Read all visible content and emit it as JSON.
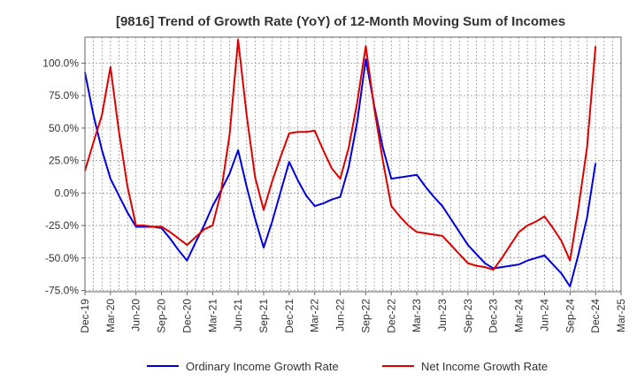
{
  "chart_data": {
    "type": "line",
    "title": "[9816]  Trend of Growth Rate (YoY) of 12-Month Moving Sum of Incomes",
    "xlabel": "",
    "ylabel": "",
    "x": [
      "Dec-19",
      "Jan-20",
      "Feb-20",
      "Mar-20",
      "Apr-20",
      "May-20",
      "Jun-20",
      "Jul-20",
      "Aug-20",
      "Sep-20",
      "Oct-20",
      "Nov-20",
      "Dec-20",
      "Jan-21",
      "Feb-21",
      "Mar-21",
      "Apr-21",
      "May-21",
      "Jun-21",
      "Jul-21",
      "Aug-21",
      "Sep-21",
      "Oct-21",
      "Nov-21",
      "Dec-21",
      "Jan-22",
      "Feb-22",
      "Mar-22",
      "Apr-22",
      "May-22",
      "Jun-22",
      "Jul-22",
      "Aug-22",
      "Sep-22",
      "Oct-22",
      "Nov-22",
      "Dec-22",
      "Jan-23",
      "Feb-23",
      "Mar-23",
      "Apr-23",
      "May-23",
      "Jun-23",
      "Jul-23",
      "Aug-23",
      "Sep-23",
      "Oct-23",
      "Nov-23",
      "Dec-23",
      "Jan-24",
      "Feb-24",
      "Mar-24",
      "Apr-24",
      "May-24",
      "Jun-24",
      "Jul-24",
      "Aug-24",
      "Sep-24",
      "Oct-24",
      "Nov-24",
      "Dec-24"
    ],
    "x_tick_labels": [
      "Dec-19",
      "Mar-20",
      "Jun-20",
      "Sep-20",
      "Dec-20",
      "Mar-21",
      "Jun-21",
      "Sep-21",
      "Dec-21",
      "Mar-22",
      "Jun-22",
      "Sep-22",
      "Dec-22",
      "Mar-23",
      "Jun-23",
      "Sep-23",
      "Dec-23",
      "Mar-24",
      "Jun-24",
      "Sep-24",
      "Dec-24",
      "Mar-25"
    ],
    "y_tick_labels": [
      "100.0%",
      "75.0%",
      "50.0%",
      "25.0%",
      "0.0%",
      "-25.0%",
      "-50.0%",
      "-75.0%"
    ],
    "y_ticks": [
      100,
      75,
      50,
      25,
      0,
      -25,
      -50,
      -75
    ],
    "ylim": [
      -76,
      120
    ],
    "grid": true,
    "legend_position": "bottom",
    "series": [
      {
        "name": "Ordinary Income Growth Rate",
        "color": "#0000dd",
        "values": [
          93,
          60,
          33,
          11,
          -2,
          -15,
          -26,
          -26,
          -26,
          -27,
          -35,
          -44,
          -52,
          -38,
          -25,
          -10,
          2,
          15,
          33,
          5,
          -20,
          -42,
          -22,
          1,
          24,
          10,
          -2,
          -10,
          -8,
          -5,
          -3,
          20,
          55,
          103,
          67,
          35,
          11,
          12,
          13,
          14,
          5,
          -3,
          -10,
          -20,
          -30,
          -40,
          -47,
          -54,
          -58,
          -57,
          -56,
          -55,
          -52,
          -50,
          -48,
          -55,
          -62,
          -72,
          -47,
          -19,
          23
        ]
      },
      {
        "name": "Net Income Growth Rate",
        "color": "#dd0000",
        "values": [
          17,
          39,
          60,
          97,
          47,
          5,
          -25,
          -25,
          -26,
          -26,
          -30,
          -35,
          -40,
          -34,
          -28,
          -25,
          1,
          45,
          118,
          60,
          12,
          -13,
          9,
          28,
          46,
          47,
          47,
          48,
          33,
          19,
          11,
          35,
          70,
          113,
          65,
          25,
          -10,
          -18,
          -25,
          -30,
          -31,
          -32,
          -33,
          -40,
          -47,
          -54,
          -56,
          -57,
          -59,
          -50,
          -40,
          -30,
          -25,
          -22,
          -18,
          -27,
          -37,
          -52,
          -11,
          35,
          113
        ]
      }
    ]
  }
}
